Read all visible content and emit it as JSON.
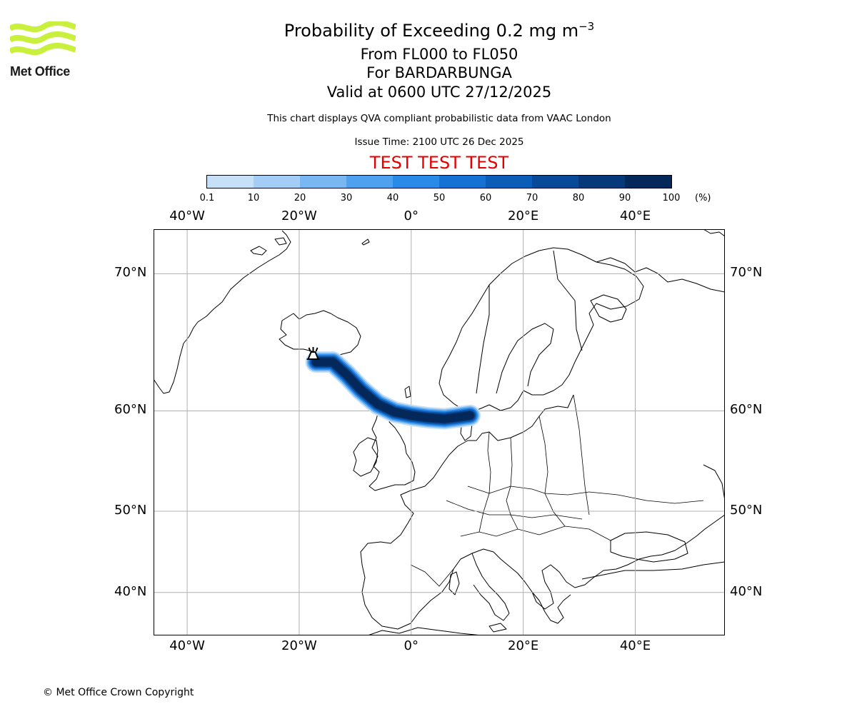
{
  "header": {
    "title": "Probability of Exceeding 0.2 mg m",
    "title_exp": "−3",
    "subtitle_levels": "From FL000 to FL050",
    "subtitle_volcano": "For BARDARBUNGA",
    "subtitle_valid": "Valid at 0600 UTC 27/12/2025",
    "disclaimer": "This chart displays QVA compliant probabilistic data from VAAC London",
    "issue_time": "Issue Time: 2100 UTC 26 Dec 2025",
    "test_banner": "TEST TEST TEST"
  },
  "logo": {
    "text": "Met Office",
    "color": "#c8f03c"
  },
  "colorbar": {
    "ticks": [
      "0.1",
      "10",
      "20",
      "30",
      "40",
      "50",
      "60",
      "70",
      "80",
      "90",
      "100"
    ],
    "units": "(%)",
    "colors": [
      "#eaf3fc",
      "#c6e0f8",
      "#a3cdf5",
      "#78b7f2",
      "#4ea1ee",
      "#2a8ae8",
      "#1572d4",
      "#0b5db7",
      "#084a97",
      "#06397a",
      "#04285a"
    ]
  },
  "axes": {
    "lon_labels": [
      "40°W",
      "20°W",
      "0°",
      "20°E",
      "40°E"
    ],
    "lat_labels": [
      "70°N",
      "60°N",
      "50°N",
      "40°N"
    ],
    "lon_ticks": [
      -40,
      -20,
      0,
      20,
      40
    ],
    "lat_ticks": [
      70,
      60,
      50,
      40
    ],
    "extent": {
      "lon": [
        -46,
        56
      ],
      "lat": [
        34,
        72.5
      ]
    },
    "grid": true
  },
  "plume": {
    "description_free": true,
    "source": {
      "name": "BARDARBUNGA",
      "lon": -17.5,
      "lat": 64.6
    },
    "path": [
      [
        -17.0,
        64.0
      ],
      [
        -14.0,
        64.0
      ],
      [
        -11.5,
        63.0
      ],
      [
        -9.0,
        61.8
      ],
      [
        -6.0,
        60.6
      ],
      [
        -3.0,
        59.9
      ],
      [
        0.0,
        59.6
      ],
      [
        3.0,
        59.4
      ],
      [
        6.0,
        59.3
      ],
      [
        9.0,
        59.5
      ],
      [
        10.5,
        59.6
      ]
    ],
    "max_probability": 100
  },
  "footer": {
    "copyright": "© Met Office Crown Copyright"
  }
}
